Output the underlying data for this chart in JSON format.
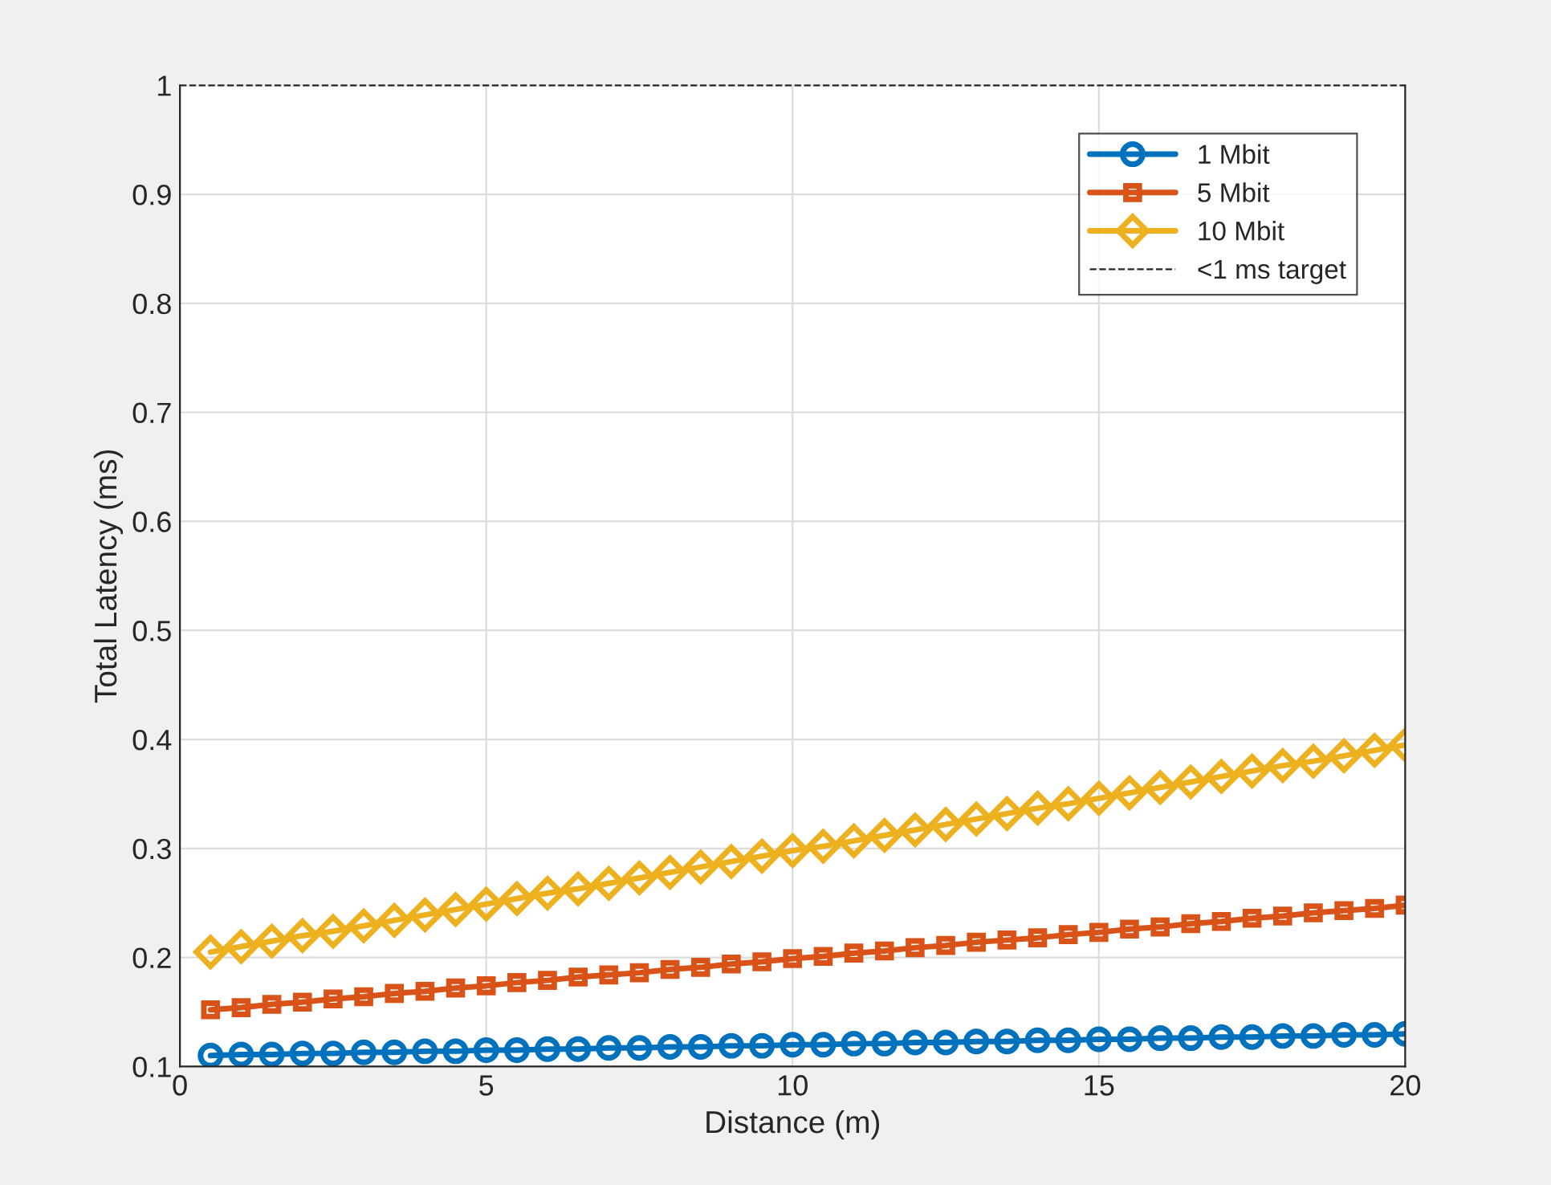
{
  "chart_data": {
    "type": "line",
    "xlabel": "Distance (m)",
    "ylabel": "Total Latency (ms)",
    "x": [
      0.5,
      1,
      1.5,
      2,
      2.5,
      3,
      3.5,
      4,
      4.5,
      5,
      5.5,
      6,
      6.5,
      7,
      7.5,
      8,
      8.5,
      9,
      9.5,
      10,
      10.5,
      11,
      11.5,
      12,
      12.5,
      13,
      13.5,
      14,
      14.5,
      15,
      15.5,
      16,
      16.5,
      17,
      17.5,
      18,
      18.5,
      19,
      19.5,
      20
    ],
    "series": [
      {
        "name": "1 Mbit",
        "color": "#0072bd",
        "marker": "circle",
        "values": [
          0.11,
          0.111,
          0.111,
          0.112,
          0.112,
          0.113,
          0.113,
          0.114,
          0.114,
          0.115,
          0.115,
          0.116,
          0.116,
          0.117,
          0.117,
          0.118,
          0.118,
          0.119,
          0.119,
          0.12,
          0.12,
          0.121,
          0.121,
          0.122,
          0.122,
          0.123,
          0.123,
          0.124,
          0.124,
          0.125,
          0.125,
          0.126,
          0.126,
          0.127,
          0.127,
          0.128,
          0.128,
          0.129,
          0.129,
          0.13
        ]
      },
      {
        "name": "5 Mbit",
        "color": "#d95319",
        "marker": "square",
        "values": [
          0.152,
          0.154,
          0.157,
          0.159,
          0.162,
          0.164,
          0.167,
          0.169,
          0.172,
          0.174,
          0.177,
          0.179,
          0.182,
          0.184,
          0.186,
          0.189,
          0.191,
          0.194,
          0.196,
          0.199,
          0.201,
          0.204,
          0.206,
          0.209,
          0.211,
          0.214,
          0.216,
          0.218,
          0.221,
          0.223,
          0.226,
          0.228,
          0.231,
          0.233,
          0.236,
          0.238,
          0.241,
          0.243,
          0.245,
          0.248
        ]
      },
      {
        "name": "10 Mbit",
        "color": "#edb120",
        "marker": "diamond",
        "values": [
          0.205,
          0.21,
          0.215,
          0.22,
          0.224,
          0.229,
          0.234,
          0.239,
          0.244,
          0.249,
          0.254,
          0.259,
          0.263,
          0.268,
          0.273,
          0.278,
          0.283,
          0.288,
          0.293,
          0.298,
          0.302,
          0.307,
          0.312,
          0.317,
          0.322,
          0.327,
          0.332,
          0.337,
          0.341,
          0.346,
          0.351,
          0.356,
          0.361,
          0.366,
          0.371,
          0.376,
          0.38,
          0.385,
          0.39,
          0.395
        ]
      }
    ],
    "ref_lines": [
      {
        "axis": "y",
        "value": 1,
        "label": "<1 ms target",
        "color": "#262626",
        "line_style": "dashed"
      }
    ],
    "xlim": [
      0,
      20
    ],
    "xticks": [
      0,
      5,
      10,
      15,
      20
    ],
    "ylim": [
      0.1,
      1
    ],
    "yticks": [
      0.1,
      0.2,
      0.3,
      0.4,
      0.5,
      0.6,
      0.7,
      0.8,
      0.9,
      1
    ],
    "grid": true,
    "legend": "top right",
    "line_style": "solid"
  }
}
